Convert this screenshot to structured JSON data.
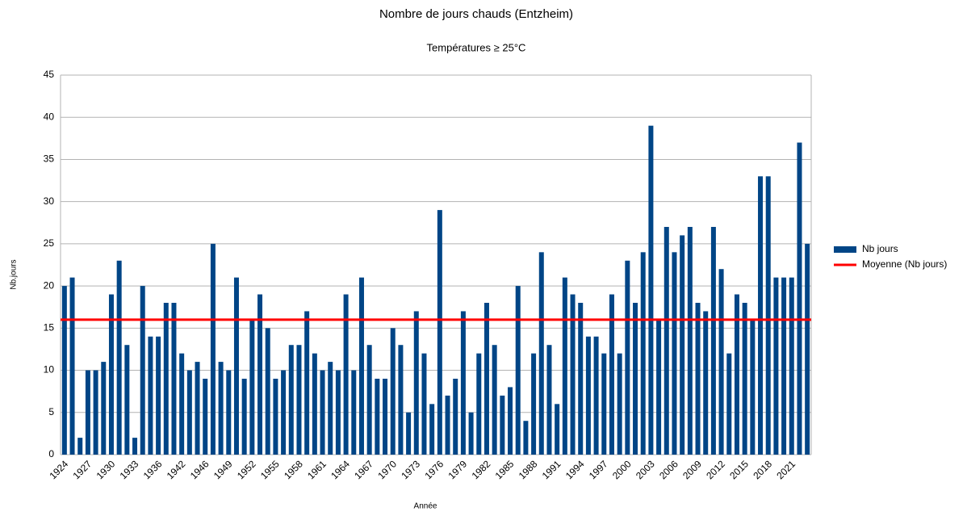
{
  "chart_data": {
    "type": "bar",
    "title": "Nombre de jours chauds (Entzheim)",
    "subtitle": "Températures ≥ 25°C",
    "x_label": "Année",
    "y_label": "Nb.jours",
    "categories": [
      "1924",
      null,
      null,
      "1927",
      null,
      null,
      "1930",
      null,
      null,
      "1933",
      null,
      null,
      "1936",
      null,
      null,
      "1942",
      null,
      null,
      "1946",
      null,
      null,
      "1949",
      null,
      null,
      "1952",
      null,
      null,
      "1955",
      null,
      null,
      "1958",
      null,
      null,
      "1961",
      null,
      null,
      "1964",
      null,
      null,
      "1967",
      null,
      null,
      "1970",
      null,
      null,
      "1973",
      null,
      null,
      "1976",
      null,
      null,
      "1979",
      null,
      null,
      "1982",
      null,
      null,
      "1985",
      null,
      null,
      "1988",
      null,
      null,
      "1991",
      null,
      null,
      "1994",
      null,
      null,
      "1997",
      null,
      null,
      "2000",
      null,
      null,
      "2003",
      null,
      null,
      "2006",
      null,
      null,
      "2009",
      null,
      null,
      "2012",
      null,
      null,
      "2015",
      null,
      null,
      "2018",
      null,
      null,
      "2021",
      null,
      null
    ],
    "series": [
      {
        "name": "Nb jours",
        "color": "#004586",
        "values": [
          20,
          21,
          2,
          10,
          10,
          11,
          19,
          23,
          13,
          2,
          20,
          14,
          14,
          18,
          18,
          12,
          10,
          11,
          9,
          25,
          11,
          10,
          21,
          9,
          16,
          19,
          15,
          9,
          10,
          13,
          13,
          17,
          12,
          10,
          11,
          10,
          19,
          10,
          21,
          13,
          9,
          9,
          15,
          13,
          5,
          17,
          12,
          6,
          29,
          7,
          9,
          17,
          5,
          12,
          18,
          13,
          7,
          8,
          20,
          4,
          12,
          24,
          13,
          6,
          21,
          19,
          18,
          14,
          14,
          12,
          19,
          12,
          23,
          18,
          24,
          39,
          16,
          27,
          24,
          26,
          27,
          18,
          17,
          27,
          22,
          12,
          19,
          18,
          16,
          33,
          33,
          21,
          21,
          21,
          37,
          25
        ]
      }
    ],
    "reference_line": {
      "name": "Moyenne (Nb jours)",
      "color": "#ff0000",
      "value": 16
    },
    "ylim": [
      0,
      45
    ],
    "yticks": [
      0,
      5,
      10,
      15,
      20,
      25,
      30,
      35,
      40,
      45
    ],
    "grid": true
  }
}
